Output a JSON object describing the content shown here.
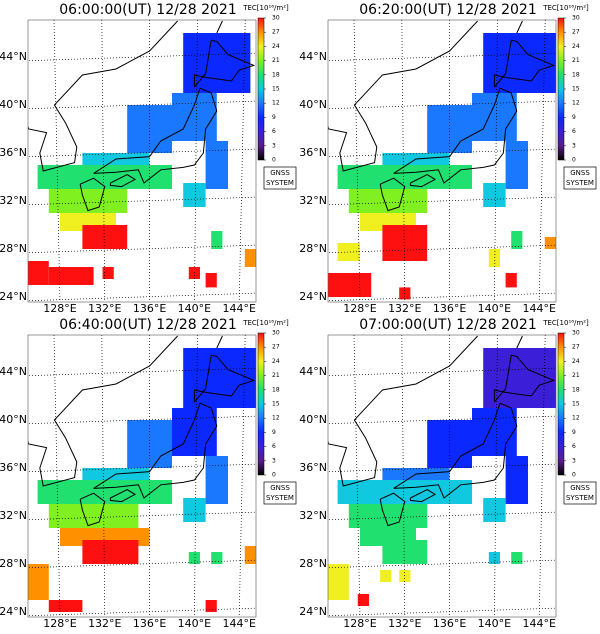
{
  "title_time": [
    "06:00:00(UT) 12/28 2021",
    "06:20:00(UT) 12/28 2021",
    "06:40:00(UT) 12/28 2021",
    "07:00:00(UT) 12/28 2021"
  ],
  "lat_labels": [
    {
      "value": 44,
      "label": "44°N"
    },
    {
      "value": 40,
      "label": "40°N"
    },
    {
      "value": 36,
      "label": "36°N"
    },
    {
      "value": 32,
      "label": "32°N"
    },
    {
      "value": 28,
      "label": "28°N"
    },
    {
      "value": 24,
      "label": "24°N"
    }
  ],
  "lon_labels": [
    {
      "value": 128,
      "label": "128°E"
    },
    {
      "value": 132,
      "label": "132°E"
    },
    {
      "value": 136,
      "label": "136°E"
    },
    {
      "value": 140,
      "label": "140°E"
    },
    {
      "value": 144,
      "label": "144°E"
    }
  ],
  "colorbar": {
    "title": "TEC[10¹⁶/m²]",
    "lim": [
      0,
      30
    ],
    "ticks": [
      0,
      3,
      6,
      9,
      12,
      15,
      18,
      21,
      24,
      27,
      30
    ],
    "colors": [
      "#000000",
      "#5a1a8c",
      "#3b1fd8",
      "#0a28ff",
      "#1a78ff",
      "#10c8e0",
      "#20e070",
      "#80f020",
      "#f0f020",
      "#ff9000",
      "#ff1010"
    ]
  },
  "badge": [
    "GNSS",
    "SYSTEM"
  ],
  "panels": [
    {
      "cells": [
        [
          139,
          145,
          41,
          46,
          10
        ],
        [
          138,
          142,
          37,
          41,
          12
        ],
        [
          134,
          138,
          36,
          40,
          13
        ],
        [
          141,
          143,
          33,
          37,
          13
        ],
        [
          130,
          136,
          34,
          36,
          15
        ],
        [
          126,
          138,
          33,
          35,
          17
        ],
        [
          139,
          141,
          31.5,
          33.5,
          16
        ],
        [
          127,
          134,
          31,
          33,
          20
        ],
        [
          128,
          133,
          29.5,
          31,
          25
        ],
        [
          130,
          134,
          28,
          30,
          30
        ],
        [
          124,
          127,
          25,
          27,
          30
        ],
        [
          127,
          131,
          25,
          26.5,
          29
        ],
        [
          131.8,
          132.8,
          25.5,
          26.5,
          30
        ],
        [
          139.5,
          140.5,
          25.5,
          26.5,
          30
        ],
        [
          141,
          142,
          24.8,
          26,
          30
        ],
        [
          141.5,
          142.5,
          28,
          29.5,
          19
        ],
        [
          144.5,
          145.5,
          26.5,
          28,
          28
        ]
      ]
    },
    {
      "cells": [
        [
          139,
          146,
          41,
          46,
          9
        ],
        [
          138,
          142,
          37,
          41,
          11
        ],
        [
          134,
          138,
          36,
          40,
          13
        ],
        [
          141,
          143,
          33,
          37,
          12
        ],
        [
          130,
          136,
          34,
          36,
          15
        ],
        [
          126,
          138,
          33,
          35,
          17
        ],
        [
          139,
          141,
          31.5,
          33.5,
          16
        ],
        [
          127,
          134,
          31,
          33,
          21
        ],
        [
          128,
          133,
          29.5,
          31,
          25
        ],
        [
          130,
          134,
          27,
          30,
          30
        ],
        [
          125,
          129,
          24,
          26,
          30
        ],
        [
          126,
          128,
          27,
          28.5,
          24
        ],
        [
          131.5,
          132.5,
          23.8,
          24.8,
          30
        ],
        [
          139.5,
          140.5,
          26.5,
          28,
          24
        ],
        [
          141,
          142,
          24.8,
          26,
          30
        ],
        [
          141.5,
          142.5,
          28,
          29.5,
          19
        ],
        [
          144.5,
          145.5,
          28,
          29,
          27
        ]
      ]
    },
    {
      "cells": [
        [
          139,
          146,
          41,
          46,
          8
        ],
        [
          138,
          142,
          37,
          41,
          9
        ],
        [
          134,
          138,
          36,
          40,
          11
        ],
        [
          141,
          143,
          33,
          37,
          11
        ],
        [
          130,
          136,
          34,
          36,
          14
        ],
        [
          126,
          138,
          33,
          35,
          17
        ],
        [
          139,
          141,
          31.5,
          33.5,
          16
        ],
        [
          127,
          135,
          31,
          33,
          22
        ],
        [
          128,
          136,
          29.5,
          31,
          27
        ],
        [
          130,
          135,
          28,
          30,
          30
        ],
        [
          124,
          127,
          25,
          28,
          27
        ],
        [
          127,
          130,
          24,
          25,
          30
        ],
        [
          139.5,
          140.5,
          28,
          29,
          19
        ],
        [
          141,
          142,
          24,
          25,
          30
        ],
        [
          141.5,
          142.5,
          28,
          29,
          19
        ],
        [
          144.5,
          145.5,
          28,
          29.5,
          26
        ]
      ]
    },
    {
      "cells": [
        [
          139,
          146,
          41,
          46,
          7
        ],
        [
          138,
          142,
          37,
          41,
          8
        ],
        [
          134,
          138,
          36,
          40,
          10
        ],
        [
          141,
          143,
          33,
          37,
          9
        ],
        [
          130,
          136,
          34,
          36,
          12
        ],
        [
          126,
          138,
          33,
          35,
          14
        ],
        [
          139,
          141,
          31.5,
          33.5,
          14
        ],
        [
          127,
          134,
          31,
          33,
          17
        ],
        [
          128,
          133,
          29.5,
          31,
          18
        ],
        [
          130,
          134,
          28,
          30,
          19
        ],
        [
          124,
          127,
          25,
          28,
          23
        ],
        [
          127.8,
          128.8,
          24.5,
          25.5,
          30
        ],
        [
          129.8,
          130.8,
          26.5,
          27.5,
          25
        ],
        [
          131.5,
          132.5,
          26.5,
          27.5,
          25
        ],
        [
          139.5,
          140.5,
          28,
          29,
          15
        ],
        [
          141.5,
          142.5,
          28,
          29,
          18
        ]
      ]
    }
  ]
}
